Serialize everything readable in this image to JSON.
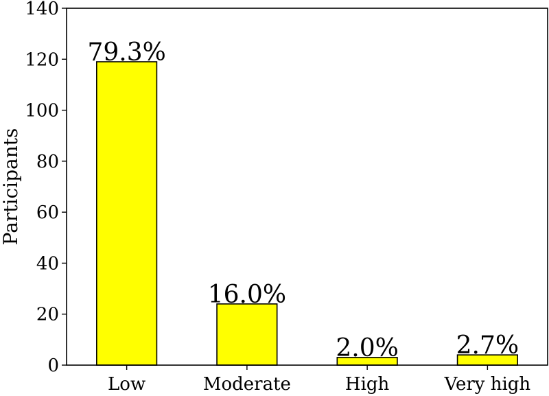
{
  "chart_data": {
    "type": "bar",
    "categories": [
      "Low",
      "Moderate",
      "High",
      "Very high"
    ],
    "values": [
      119,
      24,
      3,
      4
    ],
    "data_labels": [
      "79.3%",
      "16.0%",
      "2.0%",
      "2.7%"
    ],
    "title": "",
    "xlabel": "",
    "ylabel": "Participants",
    "ylim": [
      0,
      140
    ],
    "yticks": [
      0,
      20,
      40,
      60,
      80,
      100,
      120,
      140
    ],
    "grid": false,
    "bar_color": "#ffff00",
    "edge_color": "#000000"
  }
}
